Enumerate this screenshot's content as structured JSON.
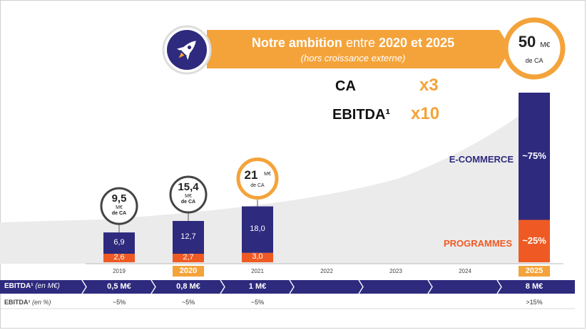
{
  "banner": {
    "title_bold": "Notre ambition",
    "title_light": "entre",
    "title_years": "2020 et 2025",
    "subtitle": "(hors croissance externe)",
    "icon": "rocket-icon"
  },
  "target": {
    "value": "50",
    "unit": "M€",
    "label": "de CA"
  },
  "multipliers": [
    {
      "label": "CA",
      "value": "x3"
    },
    {
      "label": "EBITDA¹",
      "value": "x10"
    }
  ],
  "segments": {
    "ecommerce": "E-COMMERCE",
    "programmes": "PROGRAMMES",
    "ecommerce_pct": "~75%",
    "programmes_pct": "~25%"
  },
  "colors": {
    "navy": "#2e2a7e",
    "orange": "#ef5a24",
    "gold": "#f4a33a",
    "grey_area": "#ebebeb"
  },
  "chart_data": {
    "type": "bar",
    "categories": [
      "2019",
      "2020",
      "2021",
      "2022",
      "2023",
      "2024",
      "2025"
    ],
    "series": [
      {
        "name": "PROGRAMMES",
        "values": [
          2.6,
          2.7,
          3.0,
          null,
          null,
          null,
          12.5
        ]
      },
      {
        "name": "E-COMMERCE",
        "values": [
          6.9,
          12.7,
          18.0,
          null,
          null,
          null,
          37.5
        ]
      }
    ],
    "segment_labels": [
      [
        "2,6",
        "6,9"
      ],
      [
        "2,7",
        "12,7"
      ],
      [
        "3,0",
        "18,0"
      ],
      null,
      null,
      null,
      [
        "~25%",
        "~75%"
      ]
    ],
    "totals": [
      {
        "value": "9,5",
        "label1": "M€",
        "label2": "de CA"
      },
      {
        "value": "15,4",
        "label1": "M€",
        "label2": "de CA"
      },
      {
        "value": "21",
        "label1": "M€",
        "label2": "de CA"
      },
      null,
      null,
      null,
      {
        "value": "50",
        "label1": "M€",
        "label2": "de CA"
      }
    ],
    "highlighted_years": [
      "2020",
      "2025"
    ],
    "ebitda_label": "EBITDA¹",
    "ebitda_unit": "(en M€)",
    "ebitda_values": [
      "0,5 M€",
      "0,8 M€",
      "1 M€",
      "",
      "",
      "",
      "8 M€"
    ],
    "ebitda_pct_label": "EBITDA¹",
    "ebitda_pct_unit": "(en %)",
    "ebitda_pct_values": [
      "~5%",
      "~5%",
      "~5%",
      "",
      "",
      "",
      ">15%"
    ],
    "ylim": [
      0,
      50
    ]
  }
}
